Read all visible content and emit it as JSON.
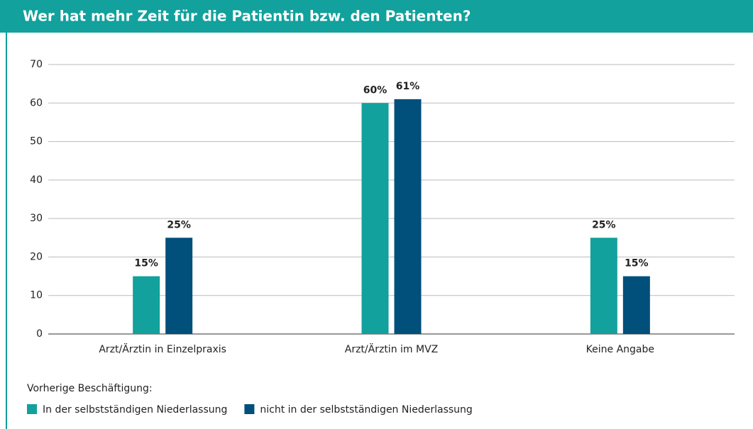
{
  "chart_data": {
    "type": "bar",
    "title": "Wer hat mehr Zeit für die Patientin bzw. den Patienten?",
    "categories": [
      "Arzt/Ärztin in Einzelpraxis",
      "Arzt/Ärztin im MVZ",
      "Keine Angabe"
    ],
    "legend_title": "Vorherige Beschäftigung:",
    "series": [
      {
        "name": "In der selbstständigen Niederlassung",
        "color": "#12a19c",
        "values": [
          15,
          60,
          25
        ],
        "value_labels": [
          "15%",
          "60%",
          "25%"
        ]
      },
      {
        "name": "nicht in der selbstständigen Niederlassung",
        "color": "#014f7b",
        "values": [
          25,
          61,
          15
        ],
        "value_labels": [
          "25%",
          "61%",
          "15%"
        ]
      }
    ],
    "ylim": [
      0,
      70
    ],
    "yticks": [
      0,
      10,
      20,
      30,
      40,
      50,
      60,
      70
    ],
    "grid": true,
    "legend": "bottom-left"
  }
}
